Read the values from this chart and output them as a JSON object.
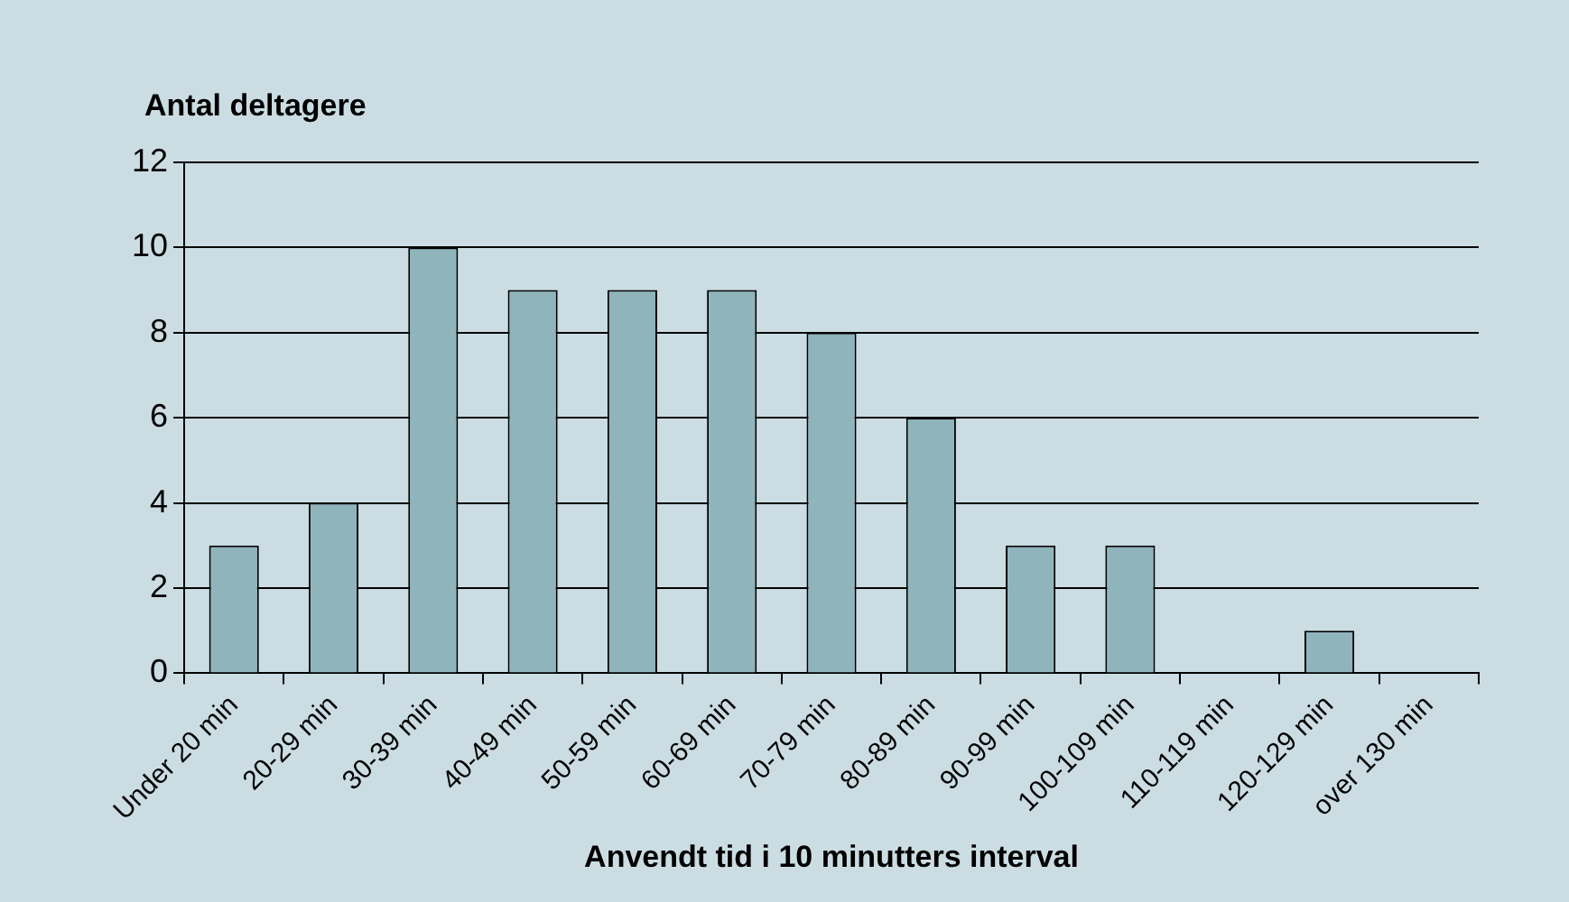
{
  "chart_data": {
    "type": "bar",
    "ylabel": "Antal deltagere",
    "xlabel": "Anvendt tid i 10 minutters interval",
    "categories": [
      "Under 20 min",
      "20-29 min",
      "30-39 min",
      "40-49 min",
      "50-59 min",
      "60-69 min",
      "70-79 min",
      "80-89 min",
      "90-99 min",
      "100-109 min",
      "110-119 min",
      "120-129 min",
      "over 130 min"
    ],
    "values": [
      3,
      4,
      10,
      9,
      9,
      9,
      8,
      6,
      3,
      3,
      0,
      1,
      0
    ],
    "color": "#8fb4bc",
    "ylim": [
      0,
      12
    ],
    "yticks": [
      0,
      2,
      4,
      6,
      8,
      10,
      12
    ],
    "grid": "y",
    "legend": false
  }
}
